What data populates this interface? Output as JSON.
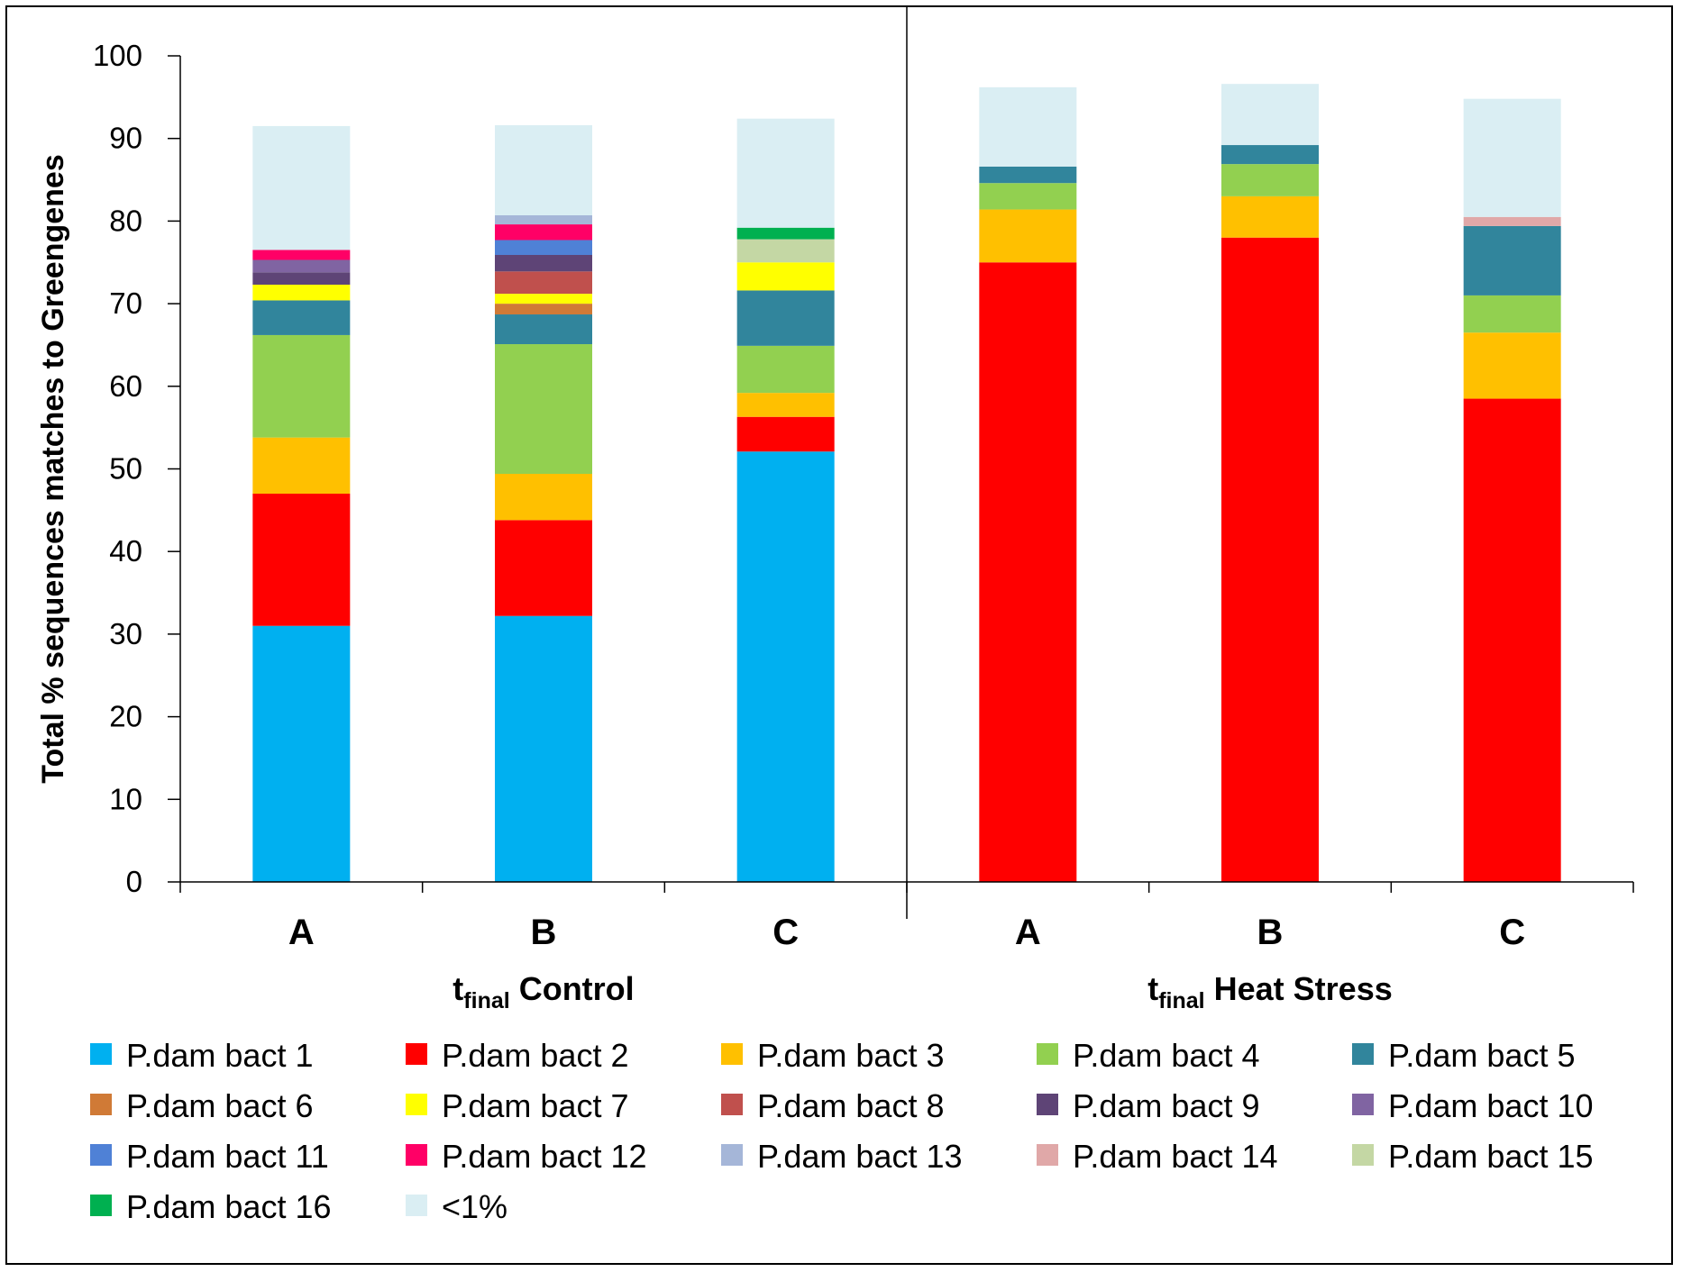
{
  "chart_data": {
    "type": "bar",
    "stacked": true,
    "ylabel": "Total % sequences matches to Greengenes",
    "ylim": [
      0,
      100
    ],
    "yticks": [
      0,
      10,
      20,
      30,
      40,
      50,
      60,
      70,
      80,
      90,
      100
    ],
    "categories": [
      "A",
      "B",
      "C",
      "A",
      "B",
      "C"
    ],
    "groups": [
      {
        "main": "t",
        "sub": "final",
        "rest": " Control",
        "categories": [
          0,
          1,
          2
        ]
      },
      {
        "main": "t",
        "sub": "final",
        "rest": " Heat Stress",
        "categories": [
          3,
          4,
          5
        ]
      }
    ],
    "series": [
      {
        "name": "P.dam bact 1",
        "color": "#00B0F0",
        "values": [
          31.0,
          32.2,
          52.1,
          0,
          0,
          0
        ]
      },
      {
        "name": "P.dam bact 2",
        "color": "#FF0000",
        "values": [
          16.0,
          11.6,
          4.2,
          75.0,
          78.0,
          58.5
        ]
      },
      {
        "name": "P.dam bact 3",
        "color": "#FFC000",
        "values": [
          6.8,
          5.6,
          2.9,
          6.4,
          5.0,
          8.0
        ]
      },
      {
        "name": "P.dam bact 4",
        "color": "#92D050",
        "values": [
          12.4,
          15.7,
          5.7,
          3.2,
          3.9,
          4.5
        ]
      },
      {
        "name": "P.dam bact 5",
        "color": "#31859C",
        "values": [
          4.2,
          3.6,
          6.7,
          2.0,
          2.3,
          8.4
        ]
      },
      {
        "name": "P.dam bact 6",
        "color": "#D07A36",
        "values": [
          0,
          1.3,
          0,
          0,
          0,
          0
        ]
      },
      {
        "name": "P.dam bact 7",
        "color": "#FFFF00",
        "values": [
          1.9,
          1.2,
          3.4,
          0,
          0,
          0
        ]
      },
      {
        "name": "P.dam bact 8",
        "color": "#C0504D",
        "values": [
          0,
          2.7,
          0,
          0,
          0,
          0
        ]
      },
      {
        "name": "P.dam bact 9",
        "color": "#5E4476",
        "values": [
          1.5,
          2.0,
          0,
          0,
          0,
          0
        ]
      },
      {
        "name": "P.dam bact 10",
        "color": "#8064A2",
        "values": [
          1.5,
          0,
          0,
          0,
          0,
          0
        ]
      },
      {
        "name": "P.dam bact 11",
        "color": "#4F81D6",
        "values": [
          0,
          1.8,
          0,
          0,
          0,
          0
        ]
      },
      {
        "name": "P.dam bact 12",
        "color": "#FF0066",
        "values": [
          1.2,
          1.9,
          0,
          0,
          0,
          0
        ]
      },
      {
        "name": "P.dam bact 13",
        "color": "#A5B6D8",
        "values": [
          0,
          1.1,
          0,
          0,
          0,
          0
        ]
      },
      {
        "name": "P.dam bact 14",
        "color": "#E0A8A8",
        "values": [
          0,
          0,
          0,
          0,
          0,
          1.1
        ]
      },
      {
        "name": "P.dam bact 15",
        "color": "#C4D7A4",
        "values": [
          0,
          0,
          2.8,
          0,
          0,
          0
        ]
      },
      {
        "name": "P.dam bact 16",
        "color": "#00B050",
        "values": [
          0,
          0,
          1.4,
          0,
          0,
          0
        ]
      },
      {
        "name": "<1%",
        "color": "#DAEEF3",
        "values": [
          15.0,
          10.9,
          13.2,
          9.6,
          7.4,
          14.3
        ]
      }
    ]
  }
}
